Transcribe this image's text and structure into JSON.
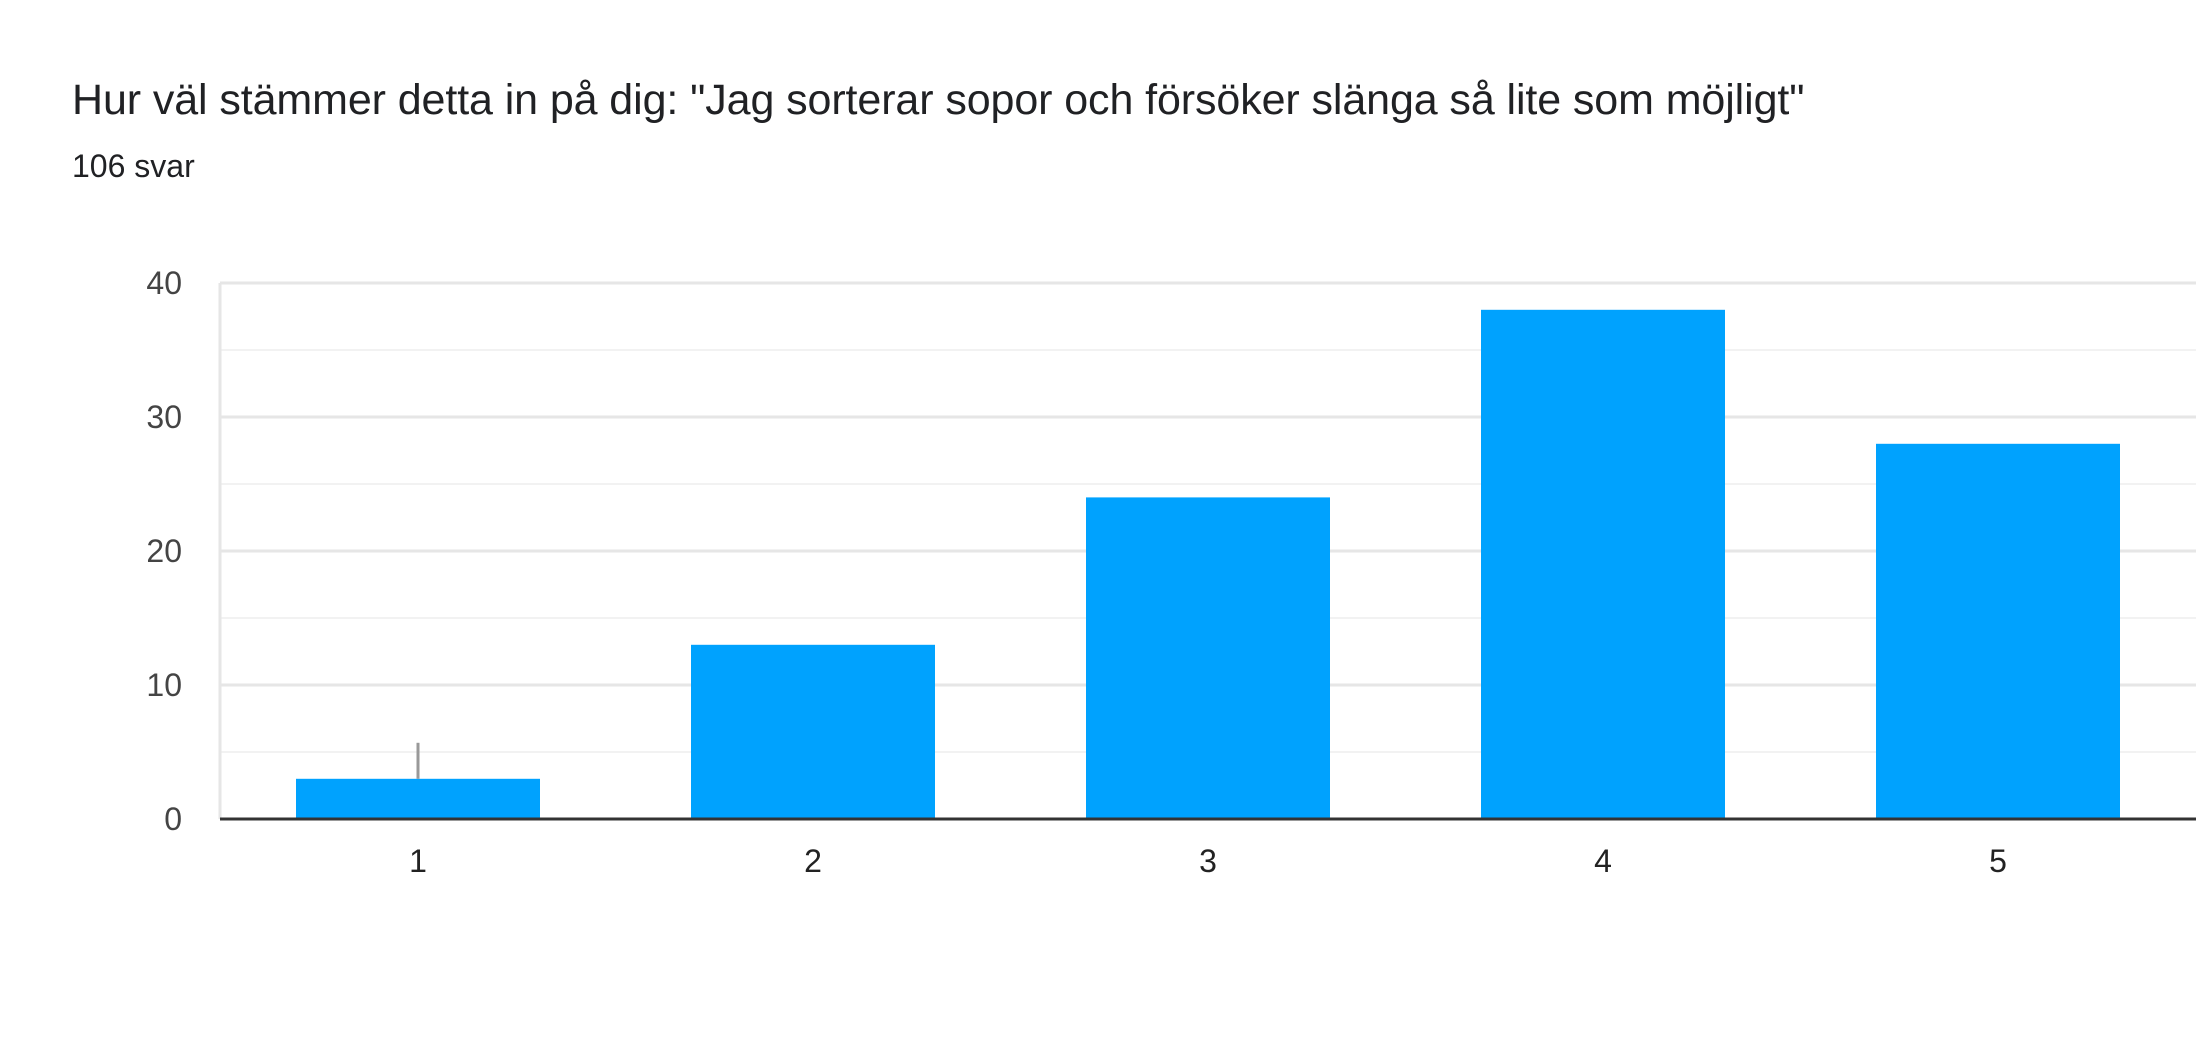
{
  "chart_data": {
    "type": "bar",
    "title": "Hur väl stämmer detta in på dig: \"Jag sorterar sopor och försöker slänga så lite som möjligt\"",
    "subtitle": "106 svar",
    "categories": [
      "1",
      "2",
      "3",
      "4",
      "5"
    ],
    "values": [
      3,
      13,
      24,
      38,
      28
    ],
    "ylim": [
      0,
      40
    ],
    "yticks": [
      0,
      10,
      20,
      30,
      40
    ],
    "grid": true,
    "colors": {
      "bar": "#00a2fe",
      "gridline": "#e6e6e6",
      "minor_gridline": "#f2f2f2",
      "axis": "#333333"
    }
  }
}
